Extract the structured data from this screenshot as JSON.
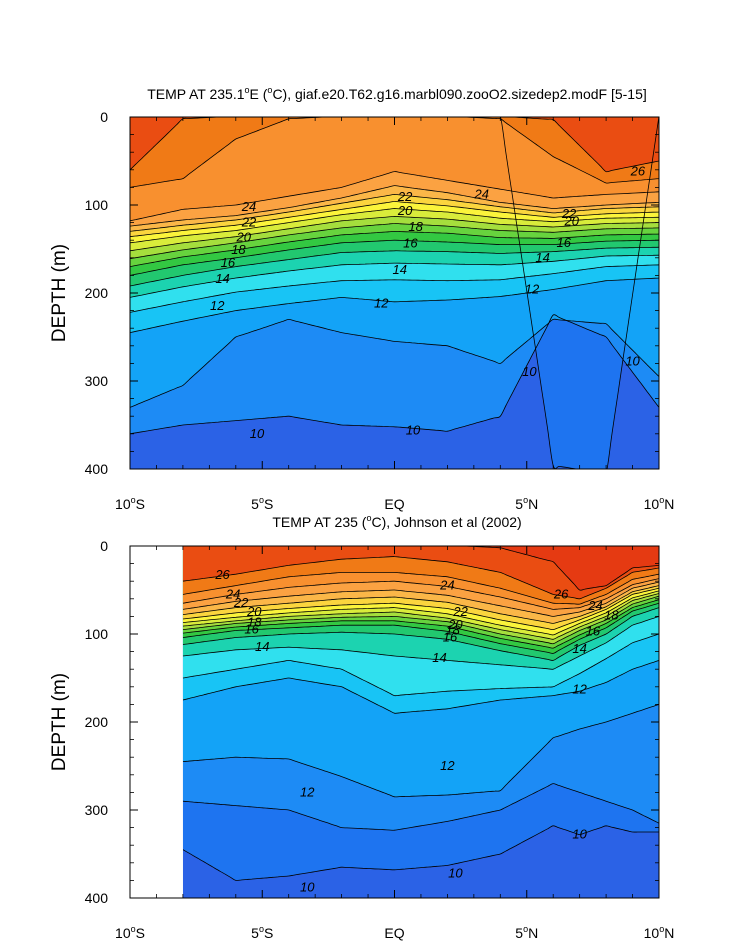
{
  "chart_data": [
    {
      "type": "contour",
      "title": "TEMP AT 235.1°E (°C), giaf.e20.T62.g16.marbl090.zooO2.sizedep2.modF [5-15]",
      "title_parts": {
        "pre": "TEMP AT 235.1",
        "mid": "E (",
        "post": "C), giaf.e20.T62.g16.marbl090.zooO2.sizedep2.modF [5-15]"
      },
      "xlabel": "",
      "ylabel": "DEPTH (m)",
      "xlim": [
        -10,
        10
      ],
      "ylim": [
        400,
        0
      ],
      "data_xlim": [
        -10,
        10
      ],
      "xticks": [
        {
          "v": -10,
          "num": "10",
          "hem": "S"
        },
        {
          "v": -5,
          "num": "5",
          "hem": "S"
        },
        {
          "v": 0,
          "num": "EQ",
          "hem": ""
        },
        {
          "v": 5,
          "num": "5",
          "hem": "N"
        },
        {
          "v": 10,
          "num": "10",
          "hem": "N"
        }
      ],
      "yticks": [
        "0",
        "100",
        "200",
        "300",
        "400"
      ],
      "levels": [
        9,
        10,
        11,
        12,
        13,
        14,
        15,
        16,
        17,
        18,
        19,
        20,
        21,
        22,
        23,
        24,
        25,
        26,
        27
      ],
      "isotherm_depths": {
        "lat": [
          -10,
          -8,
          -6,
          -4,
          -2,
          0,
          2,
          4,
          6,
          8,
          10
        ],
        "t28": [
          -1,
          -1,
          -1,
          -1,
          -1,
          -1,
          -1,
          -1,
          -1,
          -1,
          -1
        ],
        "t27": [
          -1,
          -1,
          -1,
          -1,
          -1,
          -1,
          -1,
          -1,
          -1,
          -1,
          -1
        ],
        "t26": [
          60,
          2,
          -1,
          -1,
          -1,
          -1,
          -1,
          -1,
          3,
          62,
          50
        ],
        "t25": [
          80,
          70,
          25,
          2,
          -1,
          -1,
          -1,
          2,
          45,
          75,
          70
        ],
        "t24": [
          118,
          105,
          100,
          90,
          80,
          62,
          72,
          82,
          92,
          88,
          85
        ],
        "t23": [
          124,
          117,
          112,
          103,
          92,
          78,
          86,
          97,
          104,
          100,
          97
        ],
        "t22": [
          130,
          123,
          117,
          108,
          98,
          88,
          94,
          102,
          109,
          104,
          102
        ],
        "t21": [
          136,
          129,
          123,
          114,
          105,
          96,
          101,
          108,
          114,
          110,
          108
        ],
        "t20": [
          143,
          135,
          129,
          120,
          111,
          104,
          108,
          115,
          119,
          115,
          114
        ],
        "t19": [
          152,
          143,
          136,
          127,
          118,
          113,
          116,
          122,
          125,
          121,
          120
        ],
        "t18": [
          161,
          151,
          143,
          134,
          126,
          121,
          124,
          129,
          131,
          127,
          126
        ],
        "t17": [
          170,
          159,
          151,
          142,
          134,
          130,
          132,
          137,
          138,
          134,
          133
        ],
        "t16": [
          180,
          168,
          160,
          151,
          143,
          140,
          142,
          145,
          145,
          141,
          140
        ],
        "t15": [
          192,
          180,
          170,
          162,
          154,
          152,
          153,
          155,
          153,
          149,
          148
        ],
        "t14": [
          205,
          193,
          183,
          175,
          168,
          166,
          167,
          168,
          164,
          158,
          157
        ],
        "t13": [
          222,
          210,
          199,
          192,
          186,
          185,
          186,
          185,
          178,
          170,
          168
        ],
        "t12": [
          245,
          232,
          220,
          212,
          205,
          210,
          208,
          204,
          196,
          186,
          183
        ],
        "t11": [
          330,
          305,
          250,
          230,
          245,
          255,
          260,
          280,
          230,
          235,
          295
        ],
        "t10": [
          360,
          350,
          345,
          340,
          350,
          352,
          357,
          340,
          225,
          250,
          330
        ],
        "t9": [
          -1,
          -1,
          -1,
          -1,
          -1,
          -1,
          -1,
          -1,
          396,
          405,
          -1
        ]
      },
      "contour_labels": [
        {
          "text": "26",
          "lat": 9.2,
          "depth": 62
        },
        {
          "text": "24",
          "lat": -5.5,
          "depth": 102
        },
        {
          "text": "24",
          "lat": 3.3,
          "depth": 88
        },
        {
          "text": "22",
          "lat": -5.5,
          "depth": 120
        },
        {
          "text": "22",
          "lat": 0.4,
          "depth": 91
        },
        {
          "text": "22",
          "lat": 6.6,
          "depth": 110
        },
        {
          "text": "20",
          "lat": -5.7,
          "depth": 137
        },
        {
          "text": "20",
          "lat": 0.4,
          "depth": 107
        },
        {
          "text": "20",
          "lat": 6.7,
          "depth": 119
        },
        {
          "text": "18",
          "lat": -5.9,
          "depth": 151
        },
        {
          "text": "18",
          "lat": 0.8,
          "depth": 125
        },
        {
          "text": "16",
          "lat": -6.3,
          "depth": 166
        },
        {
          "text": "16",
          "lat": 0.6,
          "depth": 144
        },
        {
          "text": "16",
          "lat": 6.4,
          "depth": 143
        },
        {
          "text": "14",
          "lat": -6.5,
          "depth": 184
        },
        {
          "text": "14",
          "lat": 0.2,
          "depth": 174
        },
        {
          "text": "14",
          "lat": 5.6,
          "depth": 160
        },
        {
          "text": "12",
          "lat": -6.7,
          "depth": 215
        },
        {
          "text": "12",
          "lat": -0.5,
          "depth": 212
        },
        {
          "text": "12",
          "lat": 5.2,
          "depth": 196
        },
        {
          "text": "10",
          "lat": -5.2,
          "depth": 360
        },
        {
          "text": "10",
          "lat": 0.7,
          "depth": 356
        },
        {
          "text": "10",
          "lat": 5.1,
          "depth": 290
        },
        {
          "text": "10",
          "lat": 9.0,
          "depth": 278
        }
      ]
    },
    {
      "type": "contour",
      "title": "TEMP AT 235 (°C), Johnson et al (2002)",
      "title_parts": {
        "pre": "TEMP AT 235 (",
        "mid": "",
        "post": "C), Johnson et al (2002)"
      },
      "xlabel": "",
      "ylabel": "DEPTH (m)",
      "xlim": [
        -10,
        10
      ],
      "ylim": [
        400,
        0
      ],
      "data_xlim": [
        -8,
        10
      ],
      "xticks": [
        {
          "v": -10,
          "num": "10",
          "hem": "S"
        },
        {
          "v": -5,
          "num": "5",
          "hem": "S"
        },
        {
          "v": 0,
          "num": "EQ",
          "hem": ""
        },
        {
          "v": 5,
          "num": "5",
          "hem": "N"
        },
        {
          "v": 10,
          "num": "10",
          "hem": "N"
        }
      ],
      "yticks": [
        "0",
        "100",
        "200",
        "300",
        "400"
      ],
      "levels": [
        9,
        10,
        11,
        12,
        13,
        14,
        15,
        16,
        17,
        18,
        19,
        20,
        21,
        22,
        23,
        24,
        25,
        26,
        27
      ],
      "isotherm_depths": {
        "lat": [
          -8,
          -6,
          -4,
          -2,
          0,
          2,
          4,
          6,
          7,
          8,
          9,
          10
        ],
        "t28": [
          -1,
          -1,
          -1,
          -1,
          -1,
          -1,
          -1,
          0,
          35,
          30,
          8,
          10
        ],
        "t27": [
          -1,
          -1,
          -1,
          -1,
          -1,
          -1,
          2,
          18,
          50,
          45,
          25,
          22
        ],
        "t26": [
          40,
          32,
          22,
          15,
          12,
          18,
          30,
          55,
          60,
          48,
          30,
          25
        ],
        "t25": [
          55,
          45,
          35,
          30,
          30,
          35,
          48,
          65,
          66,
          55,
          38,
          32
        ],
        "t24": [
          65,
          55,
          47,
          42,
          40,
          46,
          58,
          72,
          70,
          60,
          44,
          37
        ],
        "t23": [
          72,
          63,
          57,
          52,
          50,
          56,
          68,
          80,
          75,
          65,
          48,
          41
        ],
        "t22": [
          78,
          70,
          65,
          60,
          58,
          64,
          77,
          88,
          80,
          69,
          52,
          45
        ],
        "t21": [
          83,
          76,
          71,
          67,
          65,
          71,
          84,
          95,
          84,
          72,
          55,
          48
        ],
        "t20": [
          87,
          81,
          76,
          72,
          70,
          77,
          90,
          101,
          88,
          76,
          59,
          51
        ],
        "t19": [
          91,
          85,
          80,
          77,
          75,
          82,
          95,
          106,
          92,
          80,
          62,
          54
        ],
        "t18": [
          95,
          88,
          84,
          81,
          80,
          86,
          100,
          111,
          96,
          84,
          66,
          57
        ],
        "t17": [
          99,
          92,
          88,
          85,
          85,
          91,
          105,
          116,
          101,
          88,
          70,
          61
        ],
        "t16": [
          104,
          96,
          93,
          90,
          90,
          97,
          111,
          122,
          106,
          93,
          74,
          65
        ],
        "t15": [
          112,
          104,
          100,
          98,
          100,
          106,
          119,
          130,
          113,
          100,
          80,
          70
        ],
        "t14": [
          125,
          118,
          115,
          118,
          125,
          130,
          135,
          140,
          125,
          110,
          90,
          80
        ],
        "t13": [
          150,
          140,
          130,
          140,
          170,
          165,
          162,
          160,
          145,
          128,
          110,
          100
        ],
        "t12": [
          175,
          160,
          150,
          160,
          190,
          185,
          175,
          170,
          165,
          155,
          140,
          130
        ],
        "t11": [
          245,
          240,
          242,
          262,
          285,
          283,
          278,
          218,
          208,
          200,
          190,
          180
        ],
        "t10": [
          290,
          295,
          300,
          320,
          323,
          313,
          300,
          270,
          280,
          290,
          300,
          315
        ],
        "t9": [
          345,
          380,
          375,
          365,
          368,
          363,
          350,
          318,
          328,
          318,
          325,
          325
        ]
      },
      "contour_labels": [
        {
          "text": "26",
          "lat": -6.5,
          "depth": 33
        },
        {
          "text": "24",
          "lat": -6.1,
          "depth": 55
        },
        {
          "text": "24",
          "lat": 2.0,
          "depth": 45
        },
        {
          "text": "22",
          "lat": -5.8,
          "depth": 65
        },
        {
          "text": "22",
          "lat": 2.5,
          "depth": 75
        },
        {
          "text": "26",
          "lat": 6.3,
          "depth": 55
        },
        {
          "text": "24",
          "lat": 7.6,
          "depth": 68
        },
        {
          "text": "20",
          "lat": -5.3,
          "depth": 75
        },
        {
          "text": "20",
          "lat": 2.3,
          "depth": 90
        },
        {
          "text": "18",
          "lat": -5.3,
          "depth": 87
        },
        {
          "text": "18",
          "lat": 2.2,
          "depth": 96
        },
        {
          "text": "18",
          "lat": 8.2,
          "depth": 79
        },
        {
          "text": "16",
          "lat": -5.4,
          "depth": 95
        },
        {
          "text": "16",
          "lat": 2.1,
          "depth": 104
        },
        {
          "text": "16",
          "lat": 7.5,
          "depth": 97
        },
        {
          "text": "14",
          "lat": -5.0,
          "depth": 115
        },
        {
          "text": "14",
          "lat": 1.7,
          "depth": 127
        },
        {
          "text": "14",
          "lat": 7.0,
          "depth": 117
        },
        {
          "text": "12",
          "lat": 7.0,
          "depth": 163
        },
        {
          "text": "12",
          "lat": 2.0,
          "depth": 250
        },
        {
          "text": "12",
          "lat": -3.3,
          "depth": 280
        },
        {
          "text": "10",
          "lat": 7.0,
          "depth": 328
        },
        {
          "text": "10",
          "lat": 2.3,
          "depth": 372
        },
        {
          "text": "10",
          "lat": -3.3,
          "depth": 388
        }
      ]
    }
  ],
  "colors": {
    "levels": [
      "#2b62e6",
      "#1e74f0",
      "#1d8bf5",
      "#13a3f7",
      "#18c4f5",
      "#30e0ee",
      "#1cd3b0",
      "#22c86f",
      "#33c842",
      "#67d33e",
      "#a5de3d",
      "#d9ec3b",
      "#fbf43b",
      "#fbd53e",
      "#fbb748",
      "#fba242",
      "#f8902f",
      "#f07a16",
      "#ea4d12",
      "#e53a12"
    ],
    "line": "#000000",
    "missing": "#ffffff"
  }
}
